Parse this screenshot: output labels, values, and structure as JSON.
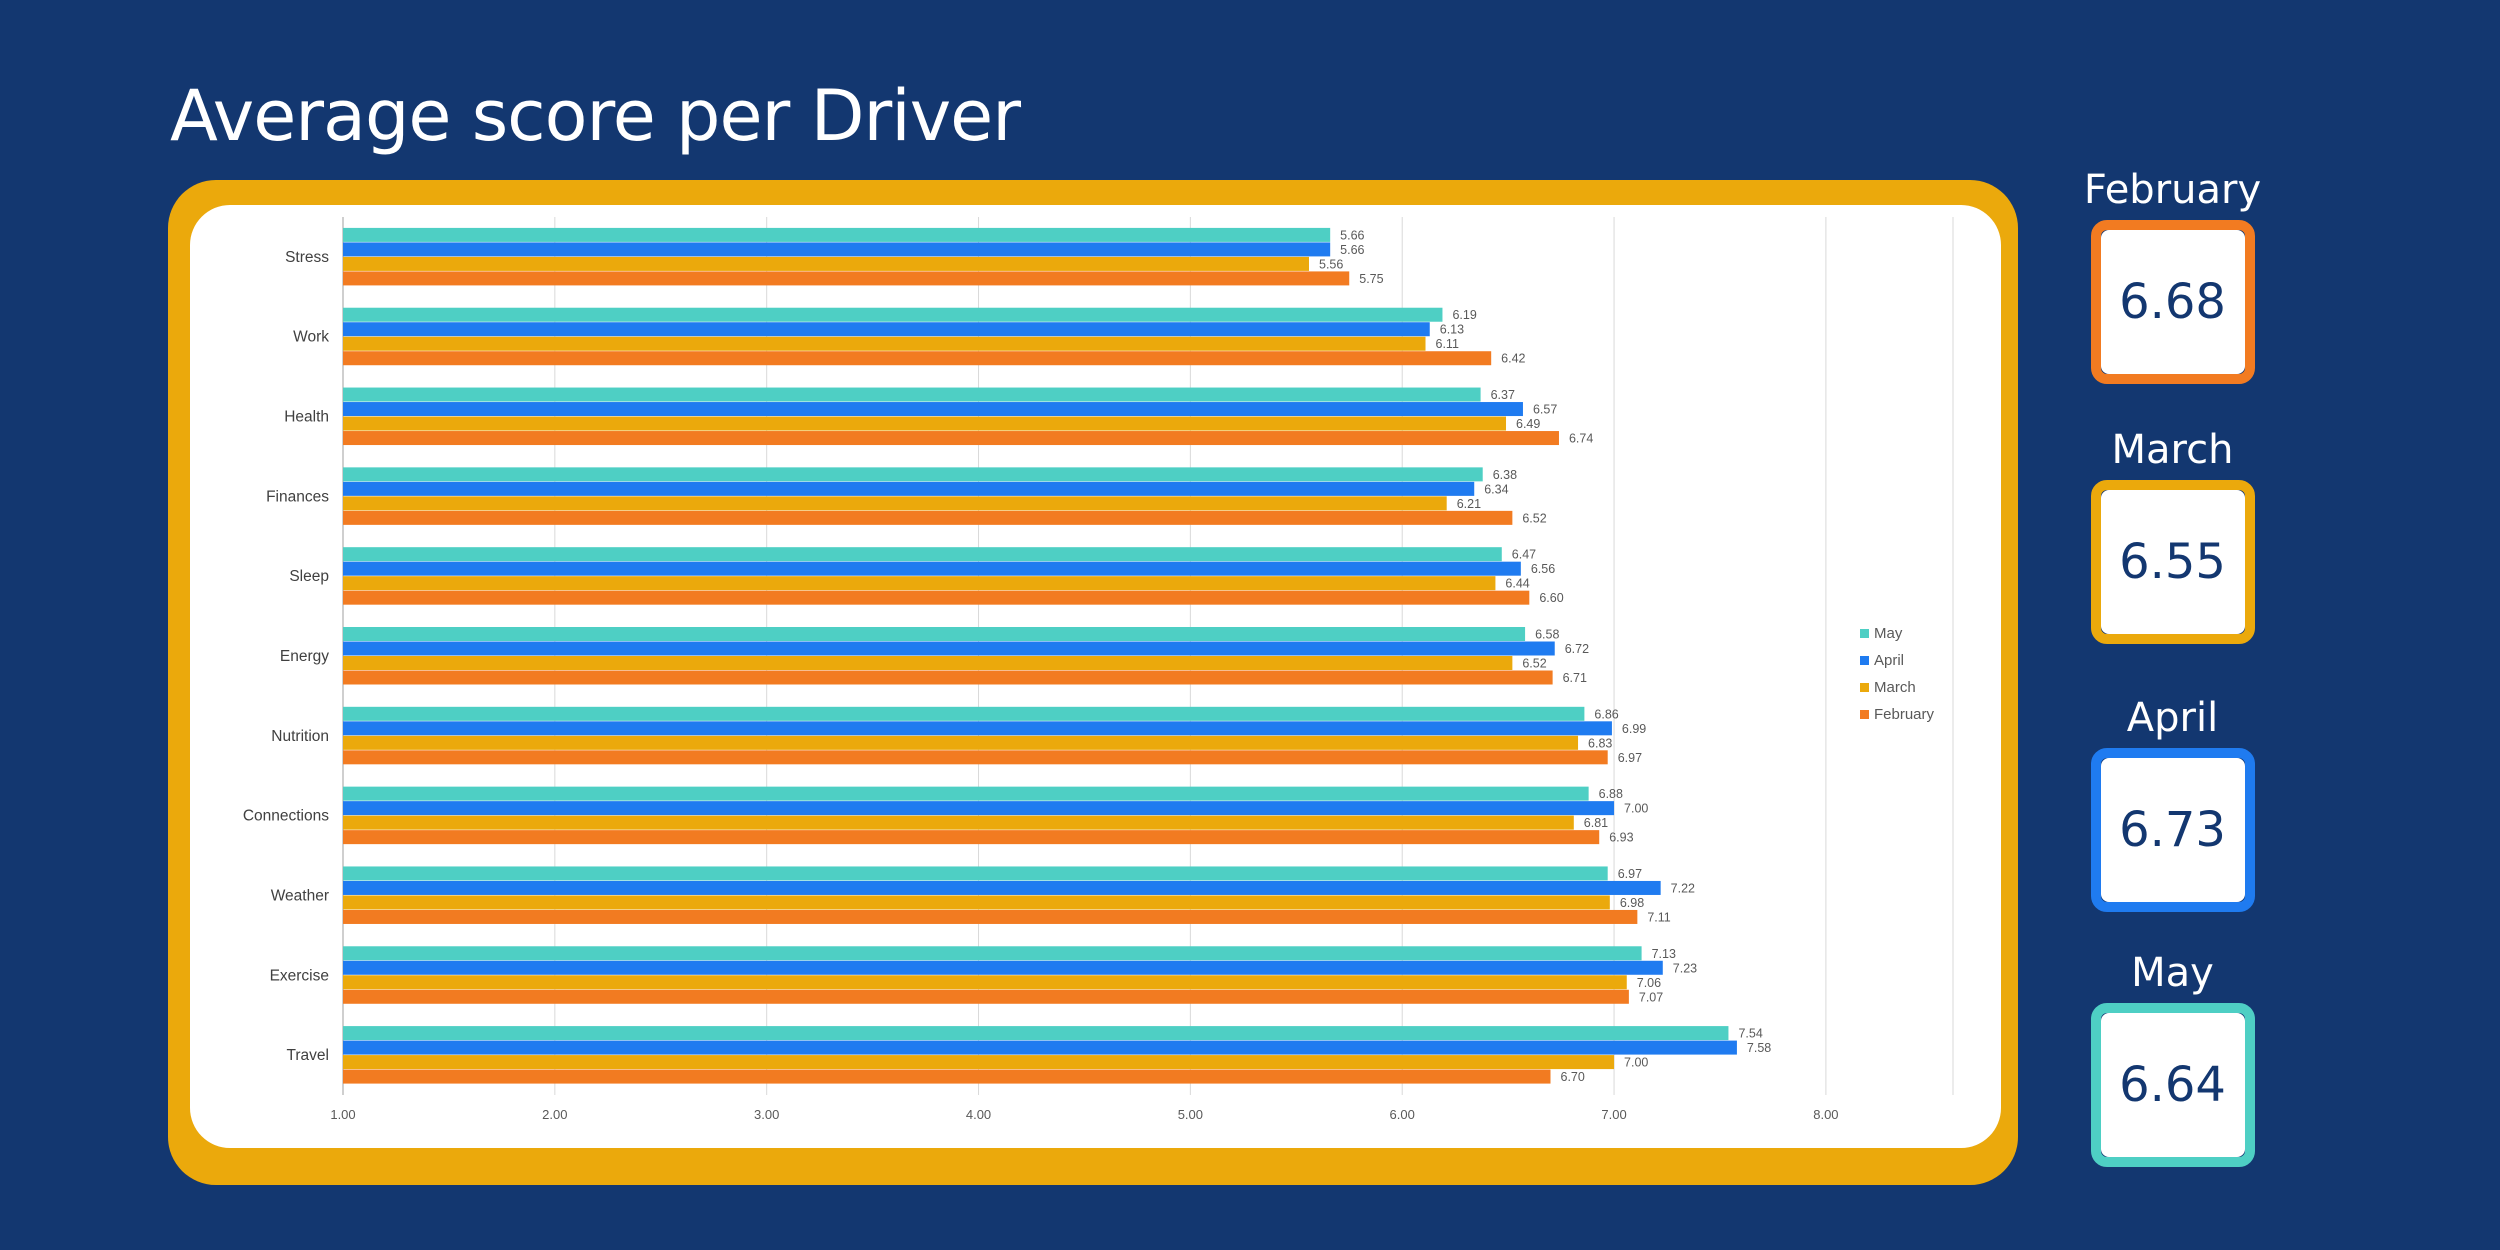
{
  "title": "Average score per Driver",
  "chart_data": {
    "type": "bar",
    "orientation": "horizontal",
    "title": "Average score per Driver",
    "categories": [
      "Stress",
      "Work",
      "Health",
      "Finances",
      "Sleep",
      "Energy",
      "Nutrition",
      "Connections",
      "Weather",
      "Exercise",
      "Travel"
    ],
    "series": [
      {
        "name": "May",
        "color": "#4ECFC4",
        "values": [
          5.66,
          6.19,
          6.37,
          6.38,
          6.47,
          6.58,
          6.86,
          6.88,
          6.97,
          7.13,
          7.54
        ],
        "labels": [
          "5.66",
          "6.19",
          "6.37",
          "6.38",
          "6.47",
          "6.58",
          "6.86",
          "6.88",
          "6.97",
          "7.13",
          "7.54"
        ]
      },
      {
        "name": "April",
        "color": "#1F7BF0",
        "values": [
          5.66,
          6.13,
          6.57,
          6.34,
          6.56,
          6.72,
          6.99,
          7.0,
          7.22,
          7.23,
          7.58
        ],
        "labels": [
          "5.66",
          "6.13",
          "6.57",
          "6.34",
          "6.56",
          "6.72",
          "6.99",
          "7.00",
          "7.22",
          "7.23",
          "7.58"
        ]
      },
      {
        "name": "March",
        "color": "#EBA90C",
        "values": [
          5.56,
          6.11,
          6.49,
          6.21,
          6.44,
          6.52,
          6.83,
          6.81,
          6.98,
          7.06,
          7.0
        ],
        "labels": [
          "5.56",
          "6.11",
          "6.49",
          "6.21",
          "6.44",
          "6.52",
          "6.83",
          "6.81",
          "6.98",
          "7.06",
          "7.00"
        ]
      },
      {
        "name": "February",
        "color": "#F27B21",
        "values": [
          5.75,
          6.42,
          6.74,
          6.52,
          6.6,
          6.71,
          6.97,
          6.93,
          7.11,
          7.07,
          6.7
        ],
        "labels": [
          "5.75",
          "6.42",
          "6.74",
          "6.52",
          "6.60",
          "6.71",
          "6.97",
          "6.93",
          "7.11",
          "7.07",
          "6.70"
        ]
      }
    ],
    "xlim": [
      1,
      8.6
    ],
    "xticks": [
      1,
      2,
      3,
      4,
      5,
      6,
      7,
      8
    ],
    "xtick_labels": [
      "1.00",
      "2.00",
      "3.00",
      "4.00",
      "5.00",
      "6.00",
      "7.00",
      "8.00"
    ],
    "grid": true,
    "legend": "right",
    "legend_items": [
      "May",
      "April",
      "March",
      "February"
    ]
  },
  "month_cards": [
    {
      "month": "February",
      "value": "6.68",
      "color": "#F27B21"
    },
    {
      "month": "March",
      "value": "6.55",
      "color": "#EBA90C"
    },
    {
      "month": "April",
      "value": "6.73",
      "color": "#1F7BF0"
    },
    {
      "month": "May",
      "value": "6.64",
      "color": "#4ECFC4"
    }
  ]
}
